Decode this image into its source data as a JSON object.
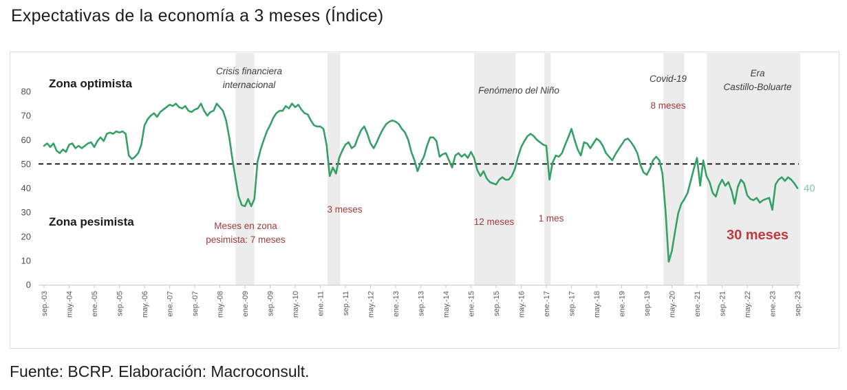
{
  "title": "Expectativas de la economía a 3 meses (Índice)",
  "footer": "Fuente: BCRP. Elaboración: Macroconsult.",
  "chart_data": {
    "type": "line",
    "title": "Expectativas de la economía a 3 meses (Índice)",
    "series_name": "Índice de expectativas de la economía a 3 meses",
    "start_month": "sep-03",
    "end_month": "sep-23",
    "frequency": "monthly",
    "ylim": [
      0,
      88
    ],
    "y_ticks": [
      0,
      10,
      20,
      30,
      40,
      50,
      60,
      70,
      80
    ],
    "reference_line": {
      "value": 50,
      "style": "dashed"
    },
    "x_tick_every_n_months": 8,
    "x_tick_labels": [
      "sep.-03",
      "may.-04",
      "ene.-05",
      "sep.-05",
      "may.-06",
      "ene.-07",
      "sep.-07",
      "may.-08",
      "ene.-09",
      "sep.-09",
      "may.-10",
      "ene.-11",
      "sep.-11",
      "may.-12",
      "ene.-13",
      "sep.-13",
      "may.-14",
      "ene.-15",
      "sep.-15",
      "may.-16",
      "ene.-17",
      "sep.-17",
      "may.-18",
      "ene.-19",
      "sep.-19",
      "may.-20",
      "ene.-21",
      "sep.-21",
      "may.-22",
      "ene.-23",
      "sep.-23"
    ],
    "values": [
      57.5,
      58.5,
      57,
      58.5,
      55.5,
      54.5,
      56,
      55,
      58,
      58.5,
      56.5,
      57.5,
      56.5,
      57.5,
      58.5,
      59,
      57,
      59.5,
      61,
      59.5,
      62.5,
      63,
      62.5,
      63.5,
      63,
      63.5,
      62.5,
      53.5,
      52,
      53,
      54.5,
      58,
      66,
      68.5,
      70,
      71,
      69.5,
      71.5,
      72.5,
      73.5,
      74.5,
      74,
      75,
      73.5,
      73,
      74,
      72,
      71.5,
      72.5,
      73,
      75,
      72,
      70,
      71.5,
      72,
      75,
      73.5,
      72,
      68,
      61,
      52,
      44,
      36.5,
      33,
      32.5,
      35.5,
      32.5,
      35.5,
      51,
      56,
      60,
      63.5,
      66,
      69,
      71,
      72,
      72,
      74,
      73,
      75,
      73.5,
      74.5,
      72.5,
      71,
      70.5,
      68,
      66,
      65.5,
      65.5,
      64.5,
      58,
      45,
      48.5,
      46,
      52.5,
      55.5,
      58,
      59,
      56.5,
      57.5,
      61,
      64,
      65.5,
      62.5,
      58.5,
      56.5,
      59,
      62,
      64.5,
      66.5,
      67.5,
      68,
      67.5,
      66.5,
      64.5,
      63,
      60,
      55,
      51.5,
      47,
      50.5,
      53,
      57.5,
      61,
      61,
      59.5,
      53,
      54,
      54.5,
      51.5,
      48.5,
      53.5,
      54.5,
      53,
      54,
      52.5,
      55,
      52.5,
      47.5,
      45,
      47,
      44,
      42.5,
      42,
      41.5,
      43.5,
      44.5,
      43.5,
      43.5,
      45,
      48,
      53,
      57,
      59.5,
      61.5,
      62.5,
      61.5,
      60,
      59,
      58,
      57.5,
      43.5,
      50.5,
      53.5,
      53,
      54.5,
      58,
      61,
      64.5,
      60,
      56,
      53.5,
      59,
      58.5,
      56.5,
      58.5,
      60.5,
      59.5,
      57.5,
      54.5,
      53,
      51.5,
      54,
      56,
      58,
      60,
      60.5,
      59,
      57,
      54.5,
      49.5,
      46.5,
      45.5,
      48,
      51.5,
      53,
      51.5,
      46,
      30,
      9.5,
      14,
      22,
      29.5,
      33.5,
      35.5,
      38,
      43,
      48,
      52.5,
      41,
      51.5,
      45,
      42.5,
      38,
      36.5,
      41,
      43.5,
      41,
      42.5,
      39,
      33.5,
      40.5,
      43.5,
      42,
      37,
      35.5,
      35,
      36,
      34,
      35,
      35.5,
      36,
      31,
      41.5,
      43.5,
      44.5,
      43,
      44.5,
      43.5,
      42,
      40
    ],
    "bands": [
      {
        "label": "Crisis financiera internacional",
        "from_month": 61.0,
        "to_month": 67.0
      },
      {
        "label": "3 meses",
        "from_month": 90.3,
        "to_month": 94.3
      },
      {
        "label": "Fenómeno del Niño",
        "from_month": 137.0,
        "to_month": 150.2
      },
      {
        "label": "1 mes",
        "from_month": 159.4,
        "to_month": 161.4
      },
      {
        "label": "Covid-19",
        "from_month": 197.3,
        "to_month": 203.9
      },
      {
        "label": "Era Castillo-Boluarte",
        "from_month": 211.1,
        "to_month": 240.9
      }
    ],
    "annotations": {
      "zona_optimista": "Zona optimista",
      "zona_pesimista": "Zona pesimista",
      "crisis_line1": "Crisis financiera",
      "crisis_line2": "internacional",
      "meses7_line1": "Meses en zona",
      "meses7_line2": "pesimista: 7 meses",
      "meses3": "3 meses",
      "nino": "Fenómeno del Niño",
      "meses12": "12 meses",
      "mes1": "1 mes",
      "covid": "Covid-19",
      "meses8": "8 meses",
      "era_line1": "Era",
      "era_line2": "Castillo-Boluarte",
      "meses30": "30 meses",
      "end_value_label": "40"
    },
    "legend_position": "none",
    "grid": false,
    "colors": {
      "line": "#35a065",
      "end_label": "#85c9a5",
      "band": "#ececec",
      "axis": "#c9c9c9",
      "tick_text": "#595959",
      "y_tick_text": "#4d4d4d",
      "reference": "#000000",
      "annotation_red": "#a23b3b",
      "annotation_red_strong": "#c23a3c"
    }
  }
}
